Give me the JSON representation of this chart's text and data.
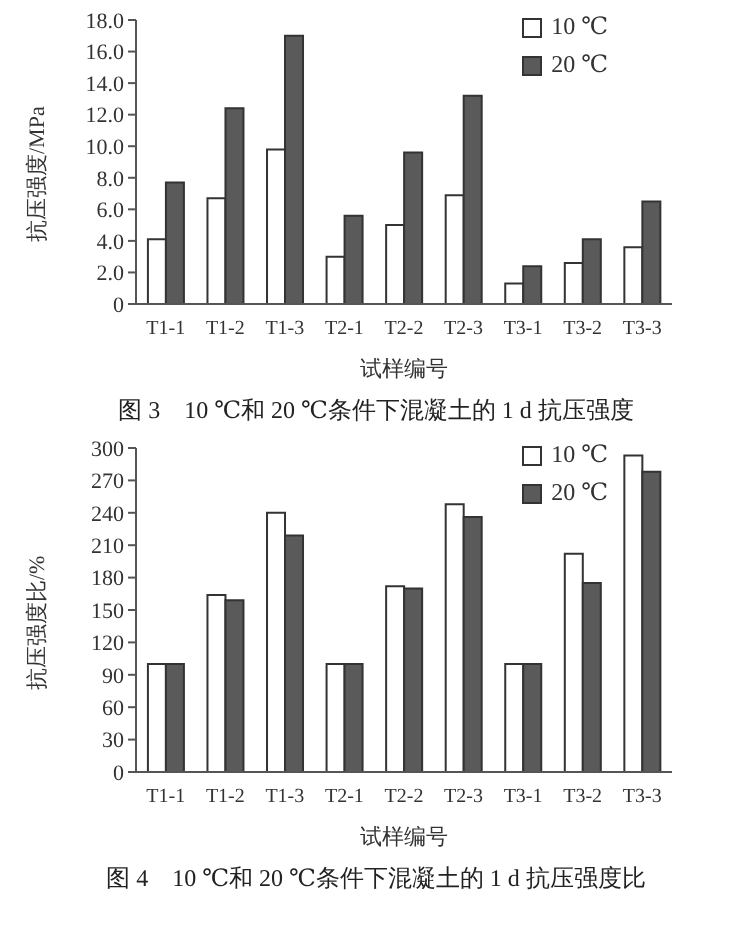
{
  "chart_data": [
    {
      "type": "bar",
      "title": "图 3　10 ℃和 20 ℃条件下混凝土的 1 d 抗压强度",
      "xlabel": "试样编号",
      "ylabel": "抗压强度/MPa",
      "categories": [
        "T1-1",
        "T1-2",
        "T1-3",
        "T2-1",
        "T2-2",
        "T2-3",
        "T3-1",
        "T3-2",
        "T3-3"
      ],
      "series": [
        {
          "name": "10 ℃",
          "color": "#ffffff",
          "values": [
            4.1,
            6.7,
            9.8,
            3.0,
            5.0,
            6.9,
            1.3,
            2.6,
            3.6
          ]
        },
        {
          "name": "20 ℃",
          "color": "#5a5a5a",
          "values": [
            7.7,
            12.4,
            17.0,
            5.6,
            9.6,
            13.2,
            2.4,
            4.1,
            6.5
          ]
        }
      ],
      "ylim": [
        0,
        18
      ],
      "yticks": [
        0,
        {
          "value": 2,
          "label": "2.0"
        },
        {
          "value": 4,
          "label": "4.0"
        },
        {
          "value": 6,
          "label": "6.0"
        },
        {
          "value": 8,
          "label": "8.0"
        },
        {
          "value": 10,
          "label": "10.0"
        },
        {
          "value": 12,
          "label": "12.0"
        },
        {
          "value": 14,
          "label": "14.0"
        },
        {
          "value": 16,
          "label": "16.0"
        },
        {
          "value": 18,
          "label": "18.0"
        }
      ],
      "grid": false,
      "legend": "top right"
    },
    {
      "type": "bar",
      "title": "图 4　10 ℃和 20 ℃条件下混凝土的 1 d 抗压强度比",
      "xlabel": "试样编号",
      "ylabel": "抗压强度比/%",
      "categories": [
        "T1-1",
        "T1-2",
        "T1-3",
        "T2-1",
        "T2-2",
        "T2-3",
        "T3-1",
        "T3-2",
        "T3-3"
      ],
      "series": [
        {
          "name": "10 ℃",
          "color": "#ffffff",
          "values": [
            100,
            164,
            240,
            100,
            172,
            248,
            100,
            202,
            293
          ]
        },
        {
          "name": "20 ℃",
          "color": "#5a5a5a",
          "values": [
            100,
            159,
            219,
            100,
            170,
            236,
            100,
            175,
            278
          ]
        }
      ],
      "ylim": [
        0,
        300
      ],
      "yticks": [
        0,
        30,
        60,
        90,
        120,
        150,
        180,
        210,
        240,
        270,
        300
      ],
      "grid": false,
      "legend": "top right"
    }
  ]
}
